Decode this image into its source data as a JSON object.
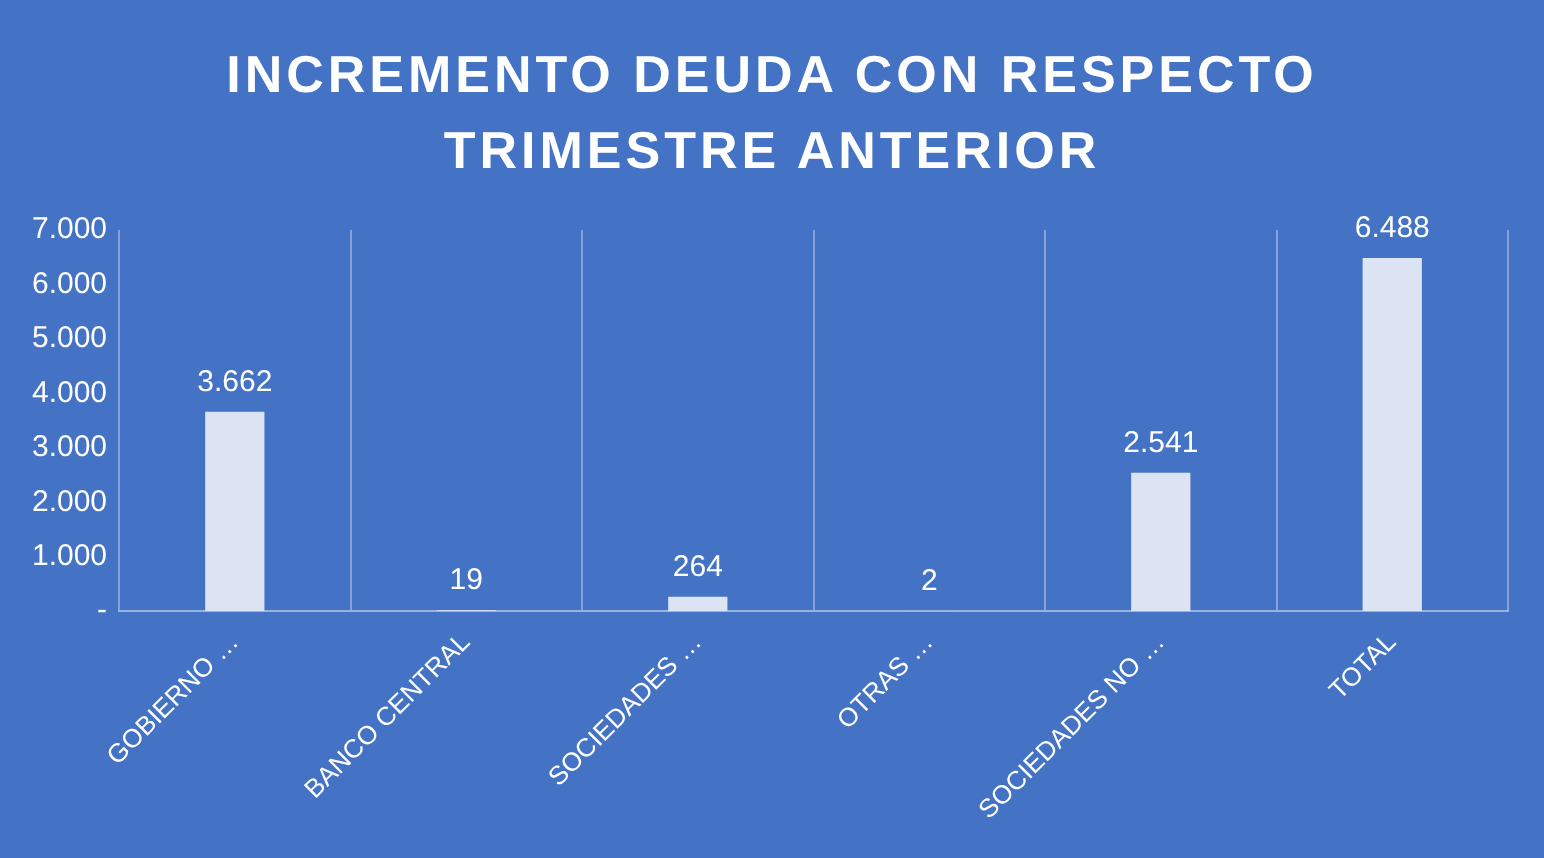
{
  "chart_data": {
    "type": "bar",
    "title": "INCREMENTO  DEUDA CON RESPECTO TRIMESTRE ANTERIOR",
    "categories": [
      "GOBIERNO …",
      "BANCO CENTRAL",
      "SOCIEDADES …",
      "OTRAS …",
      "SOCIEDADES NO …",
      "TOTAL"
    ],
    "values": [
      3662,
      19,
      264,
      2,
      2541,
      6488
    ],
    "color": "#dce4f4",
    "ylim": [
      0,
      7000
    ],
    "yticks": [
      {
        "value": 0,
        "label": "-"
      },
      {
        "value": 1000,
        "label": "1.000"
      },
      {
        "value": 2000,
        "label": "2.000"
      },
      {
        "value": 3000,
        "label": "3.000"
      },
      {
        "value": 4000,
        "label": "4.000"
      },
      {
        "value": 5000,
        "label": "5.000"
      },
      {
        "value": 6000,
        "label": "6.000"
      },
      {
        "value": 7000,
        "label": "7.000"
      }
    ],
    "value_labels": [
      "3.662",
      "19",
      "264",
      "2",
      "2.541",
      "6.488"
    ],
    "grid": "x",
    "legend": false
  }
}
